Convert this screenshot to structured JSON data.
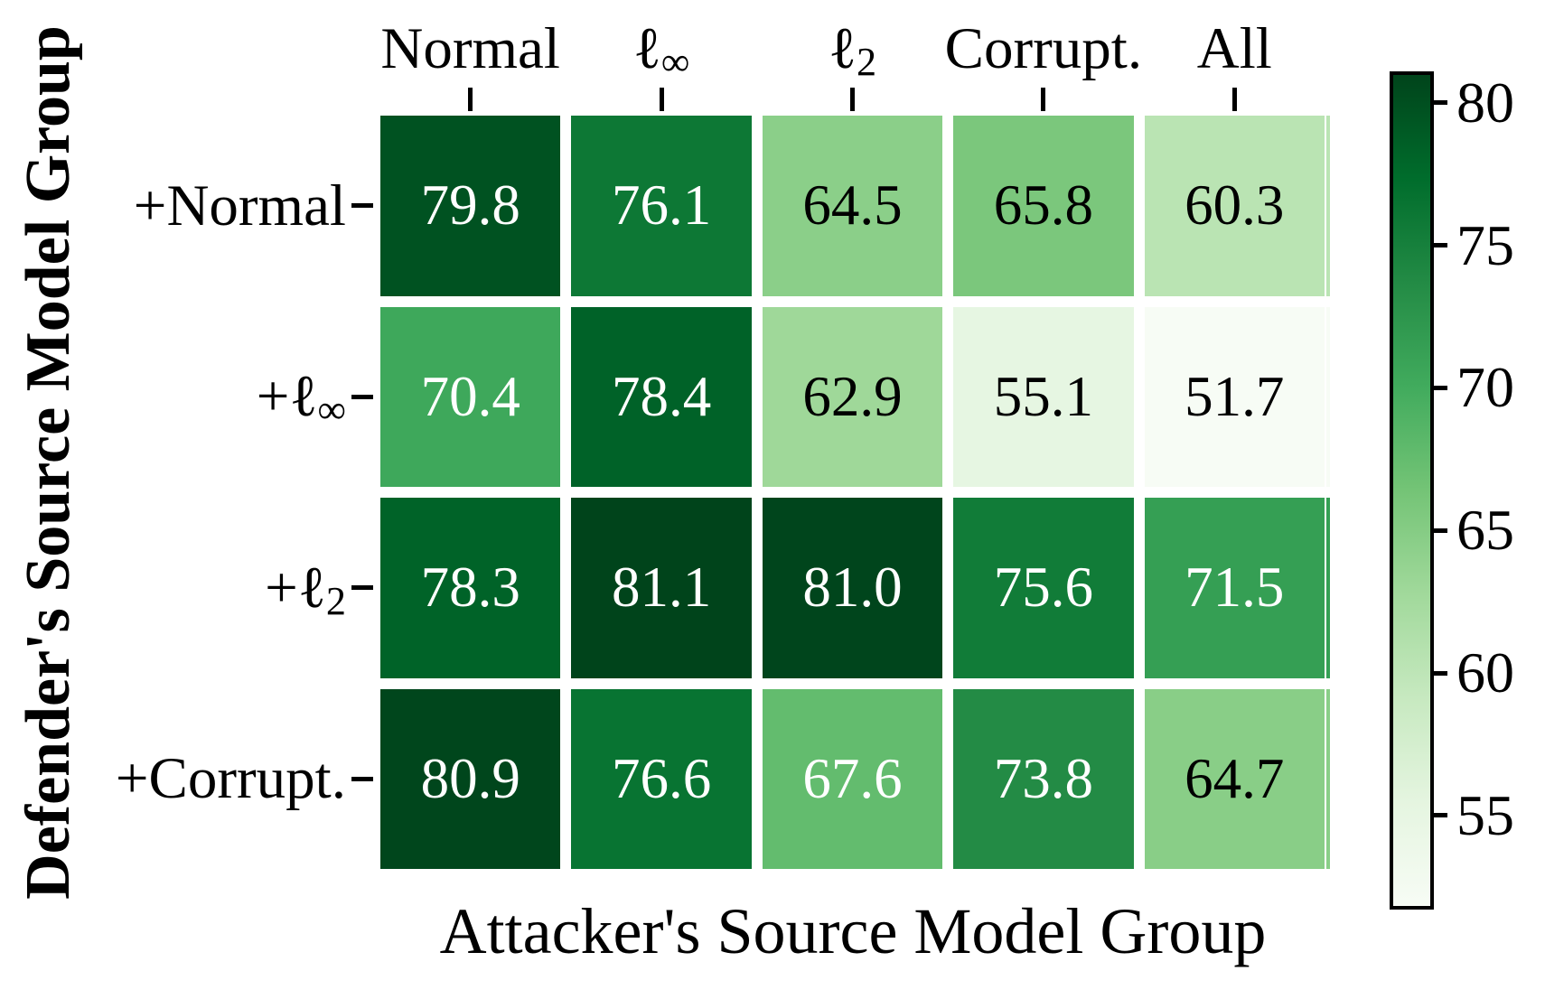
{
  "chart_data": {
    "type": "heatmap",
    "title": "",
    "xlabel": "Attacker's Source Model Group",
    "ylabel": "Defender's Source Model Group",
    "x_categories": [
      "Normal",
      "ℓ∞",
      "ℓ2",
      "Corrupt.",
      "All"
    ],
    "y_categories": [
      "+Normal",
      "+ℓ∞",
      "+ℓ2",
      "+Corrupt."
    ],
    "values": [
      [
        79.8,
        76.1,
        64.5,
        65.8,
        60.3
      ],
      [
        70.4,
        78.4,
        62.9,
        55.1,
        51.7
      ],
      [
        78.3,
        81.1,
        81.0,
        75.6,
        71.5
      ],
      [
        80.9,
        76.6,
        67.6,
        73.8,
        64.7
      ]
    ],
    "colormap": "Greens",
    "vmin": 51.7,
    "vmax": 81.1,
    "colorbar_ticks": [
      80,
      75,
      70,
      65,
      60,
      55
    ],
    "colorbar_position": "right",
    "grid": "off"
  },
  "display": {
    "columns": [
      {
        "main": "Normal",
        "sub": ""
      },
      {
        "main": "ℓ",
        "sub": "∞"
      },
      {
        "main": "ℓ",
        "sub": "2"
      },
      {
        "main": "Corrupt.",
        "sub": ""
      },
      {
        "main": "All",
        "sub": ""
      }
    ],
    "rows": [
      {
        "main": "+Normal",
        "sub": ""
      },
      {
        "main": "+ℓ",
        "sub": "∞"
      },
      {
        "main": "+ℓ",
        "sub": "2"
      },
      {
        "main": "+Corrupt.",
        "sub": ""
      }
    ],
    "cells": [
      [
        {
          "text": "79.8",
          "bg": "#005221",
          "fg": "#ffffff"
        },
        {
          "text": "76.1",
          "bg": "#0d7835",
          "fg": "#ffffff"
        },
        {
          "text": "64.5",
          "bg": "#8bcf89",
          "fg": "#000000"
        },
        {
          "text": "65.8",
          "bg": "#7bc77c",
          "fg": "#000000"
        },
        {
          "text": "60.3",
          "bg": "#bae4b3",
          "fg": "#000000"
        }
      ],
      [
        {
          "text": "70.4",
          "bg": "#3ea85b",
          "fg": "#ffffff"
        },
        {
          "text": "78.4",
          "bg": "#006228",
          "fg": "#ffffff"
        },
        {
          "text": "62.9",
          "bg": "#9fd899",
          "fg": "#000000"
        },
        {
          "text": "55.1",
          "bg": "#e6f6e2",
          "fg": "#000000"
        },
        {
          "text": "51.7",
          "bg": "#f7fcf5",
          "fg": "#000000"
        }
      ],
      [
        {
          "text": "78.3",
          "bg": "#006328",
          "fg": "#ffffff"
        },
        {
          "text": "81.1",
          "bg": "#00441b",
          "fg": "#ffffff"
        },
        {
          "text": "81.0",
          "bg": "#00451c",
          "fg": "#ffffff"
        },
        {
          "text": "75.6",
          "bg": "#117c38",
          "fg": "#ffffff"
        },
        {
          "text": "71.5",
          "bg": "#359f54",
          "fg": "#ffffff"
        }
      ],
      [
        {
          "text": "80.9",
          "bg": "#00461c",
          "fg": "#ffffff"
        },
        {
          "text": "76.6",
          "bg": "#087432",
          "fg": "#ffffff"
        },
        {
          "text": "67.6",
          "bg": "#63bc6e",
          "fg": "#ffffff"
        },
        {
          "text": "73.8",
          "bg": "#238b45",
          "fg": "#ffffff"
        },
        {
          "text": "64.7",
          "bg": "#89ce87",
          "fg": "#000000"
        }
      ]
    ],
    "colorbar_tick_labels": [
      "80",
      "75",
      "70",
      "65",
      "60",
      "55"
    ],
    "colormap_stops": [
      "#f7fcf5",
      "#e5f5e0",
      "#c7e9c0",
      "#a1d99b",
      "#74c476",
      "#41ab5d",
      "#238b45",
      "#006d2c",
      "#00441b"
    ]
  }
}
